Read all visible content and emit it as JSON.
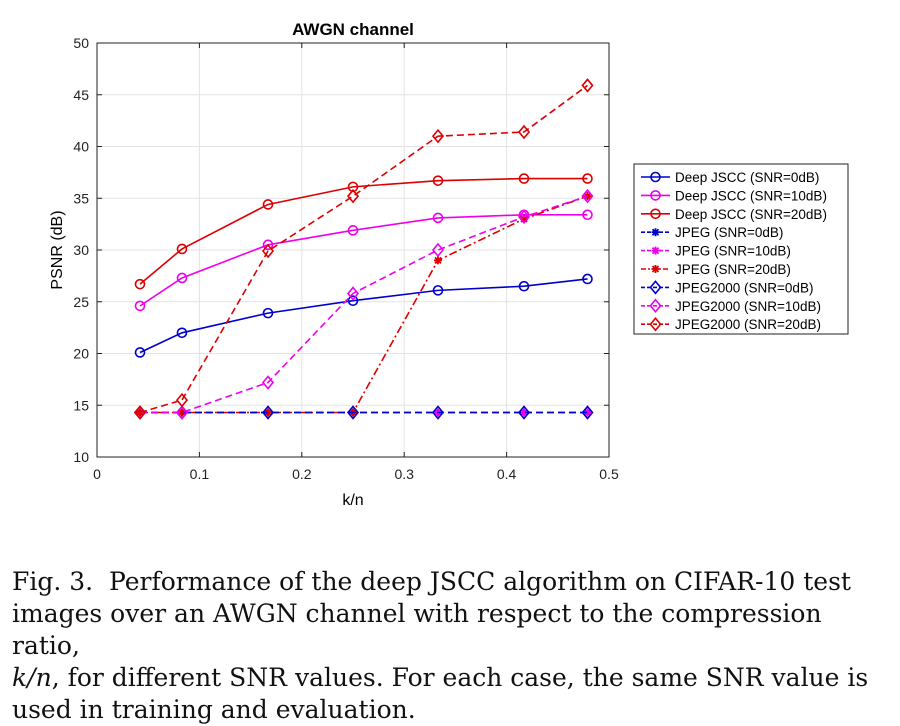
{
  "chart_data": {
    "type": "line",
    "title": "AWGN channel",
    "xlabel": "k/n",
    "ylabel": "PSNR (dB)",
    "xlim": [
      0,
      0.5
    ],
    "ylim": [
      10,
      50
    ],
    "xticks": [
      0,
      0.1,
      0.2,
      0.3,
      0.4,
      0.5
    ],
    "xtick_labels": [
      "0",
      "0.1",
      "0.2",
      "0.3",
      "0.4",
      "0.5"
    ],
    "yticks": [
      10,
      15,
      20,
      25,
      30,
      35,
      40,
      45,
      50
    ],
    "ytick_labels": [
      "10",
      "15",
      "20",
      "25",
      "30",
      "35",
      "40",
      "45",
      "50"
    ],
    "grid": true,
    "legend_position": "right",
    "x": [
      0.042,
      0.083,
      0.167,
      0.25,
      0.333,
      0.417,
      0.479
    ],
    "series": [
      {
        "name": "Deep JSCC (SNR=0dB)",
        "color": "#0000cc",
        "dash": "solid",
        "marker": "circle",
        "values": [
          20.1,
          22.0,
          23.9,
          25.1,
          26.1,
          26.5,
          27.2
        ]
      },
      {
        "name": "Deep JSCC (SNR=10dB)",
        "color": "#ee00ee",
        "dash": "solid",
        "marker": "circle",
        "values": [
          24.6,
          27.3,
          30.5,
          31.9,
          33.1,
          33.4,
          33.4
        ]
      },
      {
        "name": "Deep JSCC (SNR=20dB)",
        "color": "#dd0000",
        "dash": "solid",
        "marker": "circle",
        "values": [
          26.7,
          30.1,
          34.4,
          36.1,
          36.7,
          36.9,
          36.9
        ]
      },
      {
        "name": "JPEG (SNR=0dB)",
        "color": "#0000cc",
        "dash": "dashed",
        "marker": "star",
        "values": [
          14.3,
          14.3,
          14.3,
          14.3,
          14.3,
          14.3,
          14.3
        ]
      },
      {
        "name": "JPEG (SNR=10dB)",
        "color": "#ee00ee",
        "dash": "dashed",
        "marker": "star",
        "values": [
          14.3,
          14.3,
          14.3,
          14.3,
          14.3,
          14.3,
          14.3
        ]
      },
      {
        "name": "JPEG (SNR=20dB)",
        "color": "#dd0000",
        "dash": "dashdot",
        "marker": "star",
        "values": [
          14.3,
          14.3,
          14.3,
          14.3,
          29.0,
          33.0,
          35.2
        ]
      },
      {
        "name": "JPEG2000 (SNR=0dB)",
        "color": "#0000cc",
        "dash": "dashed",
        "marker": "diamond",
        "values": [
          14.3,
          14.3,
          14.3,
          14.3,
          14.3,
          14.3,
          14.3
        ]
      },
      {
        "name": "JPEG2000 (SNR=10dB)",
        "color": "#ee00ee",
        "dash": "dashed",
        "marker": "diamond",
        "values": [
          14.3,
          14.3,
          17.2,
          25.8,
          30.0,
          33.2,
          35.2
        ]
      },
      {
        "name": "JPEG2000 (SNR=20dB)",
        "color": "#dd0000",
        "dash": "dashed",
        "marker": "diamond",
        "values": [
          14.3,
          15.5,
          29.9,
          35.2,
          41.0,
          41.4,
          45.9
        ]
      }
    ]
  },
  "caption": {
    "prefix": "Fig. 3.",
    "line1": "Performance of the deep JSCC algorithm on CIFAR-10 test",
    "line2": "images over an AWGN channel with respect to the compression ratio,",
    "line3_math": "k/n",
    "line3_rest": ", for different SNR values. For each case, the same SNR value is",
    "line4": "used in training and evaluation."
  }
}
